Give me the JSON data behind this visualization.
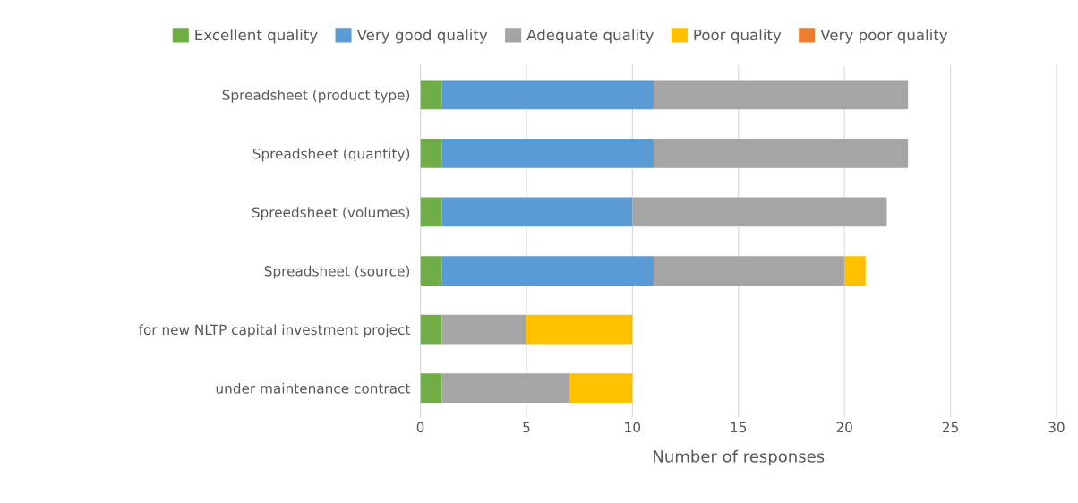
{
  "chart_data": {
    "type": "bar",
    "orientation": "horizontal",
    "stacked": true,
    "xlabel": "Number of responses",
    "categories": [
      "Spreadsheet (product type)",
      "Spreadsheet (quantity)",
      "Spreedsheet (volumes)",
      "Spreadsheet (source)",
      "for new NLTP capital investment project",
      "under maintenance contract"
    ],
    "series": [
      {
        "name": "Excellent quality",
        "color": "#70ad47",
        "values": [
          1,
          1,
          1,
          1,
          1,
          1
        ]
      },
      {
        "name": "Very good quality",
        "color": "#5b9bd5",
        "values": [
          10,
          10,
          9,
          10,
          0,
          0
        ]
      },
      {
        "name": "Adequate quality",
        "color": "#a5a5a5",
        "values": [
          12,
          12,
          12,
          9,
          4,
          6
        ]
      },
      {
        "name": "Poor quality",
        "color": "#ffc000",
        "values": [
          0,
          0,
          0,
          1,
          5,
          3
        ]
      },
      {
        "name": "Very poor quality",
        "color": "#ed7d31",
        "values": [
          0,
          0,
          0,
          0,
          0,
          0
        ]
      }
    ],
    "xlim": [
      0,
      30
    ],
    "xticks": [
      0,
      5,
      10,
      15,
      20,
      25,
      30
    ],
    "grid": "x",
    "legend": "top"
  }
}
